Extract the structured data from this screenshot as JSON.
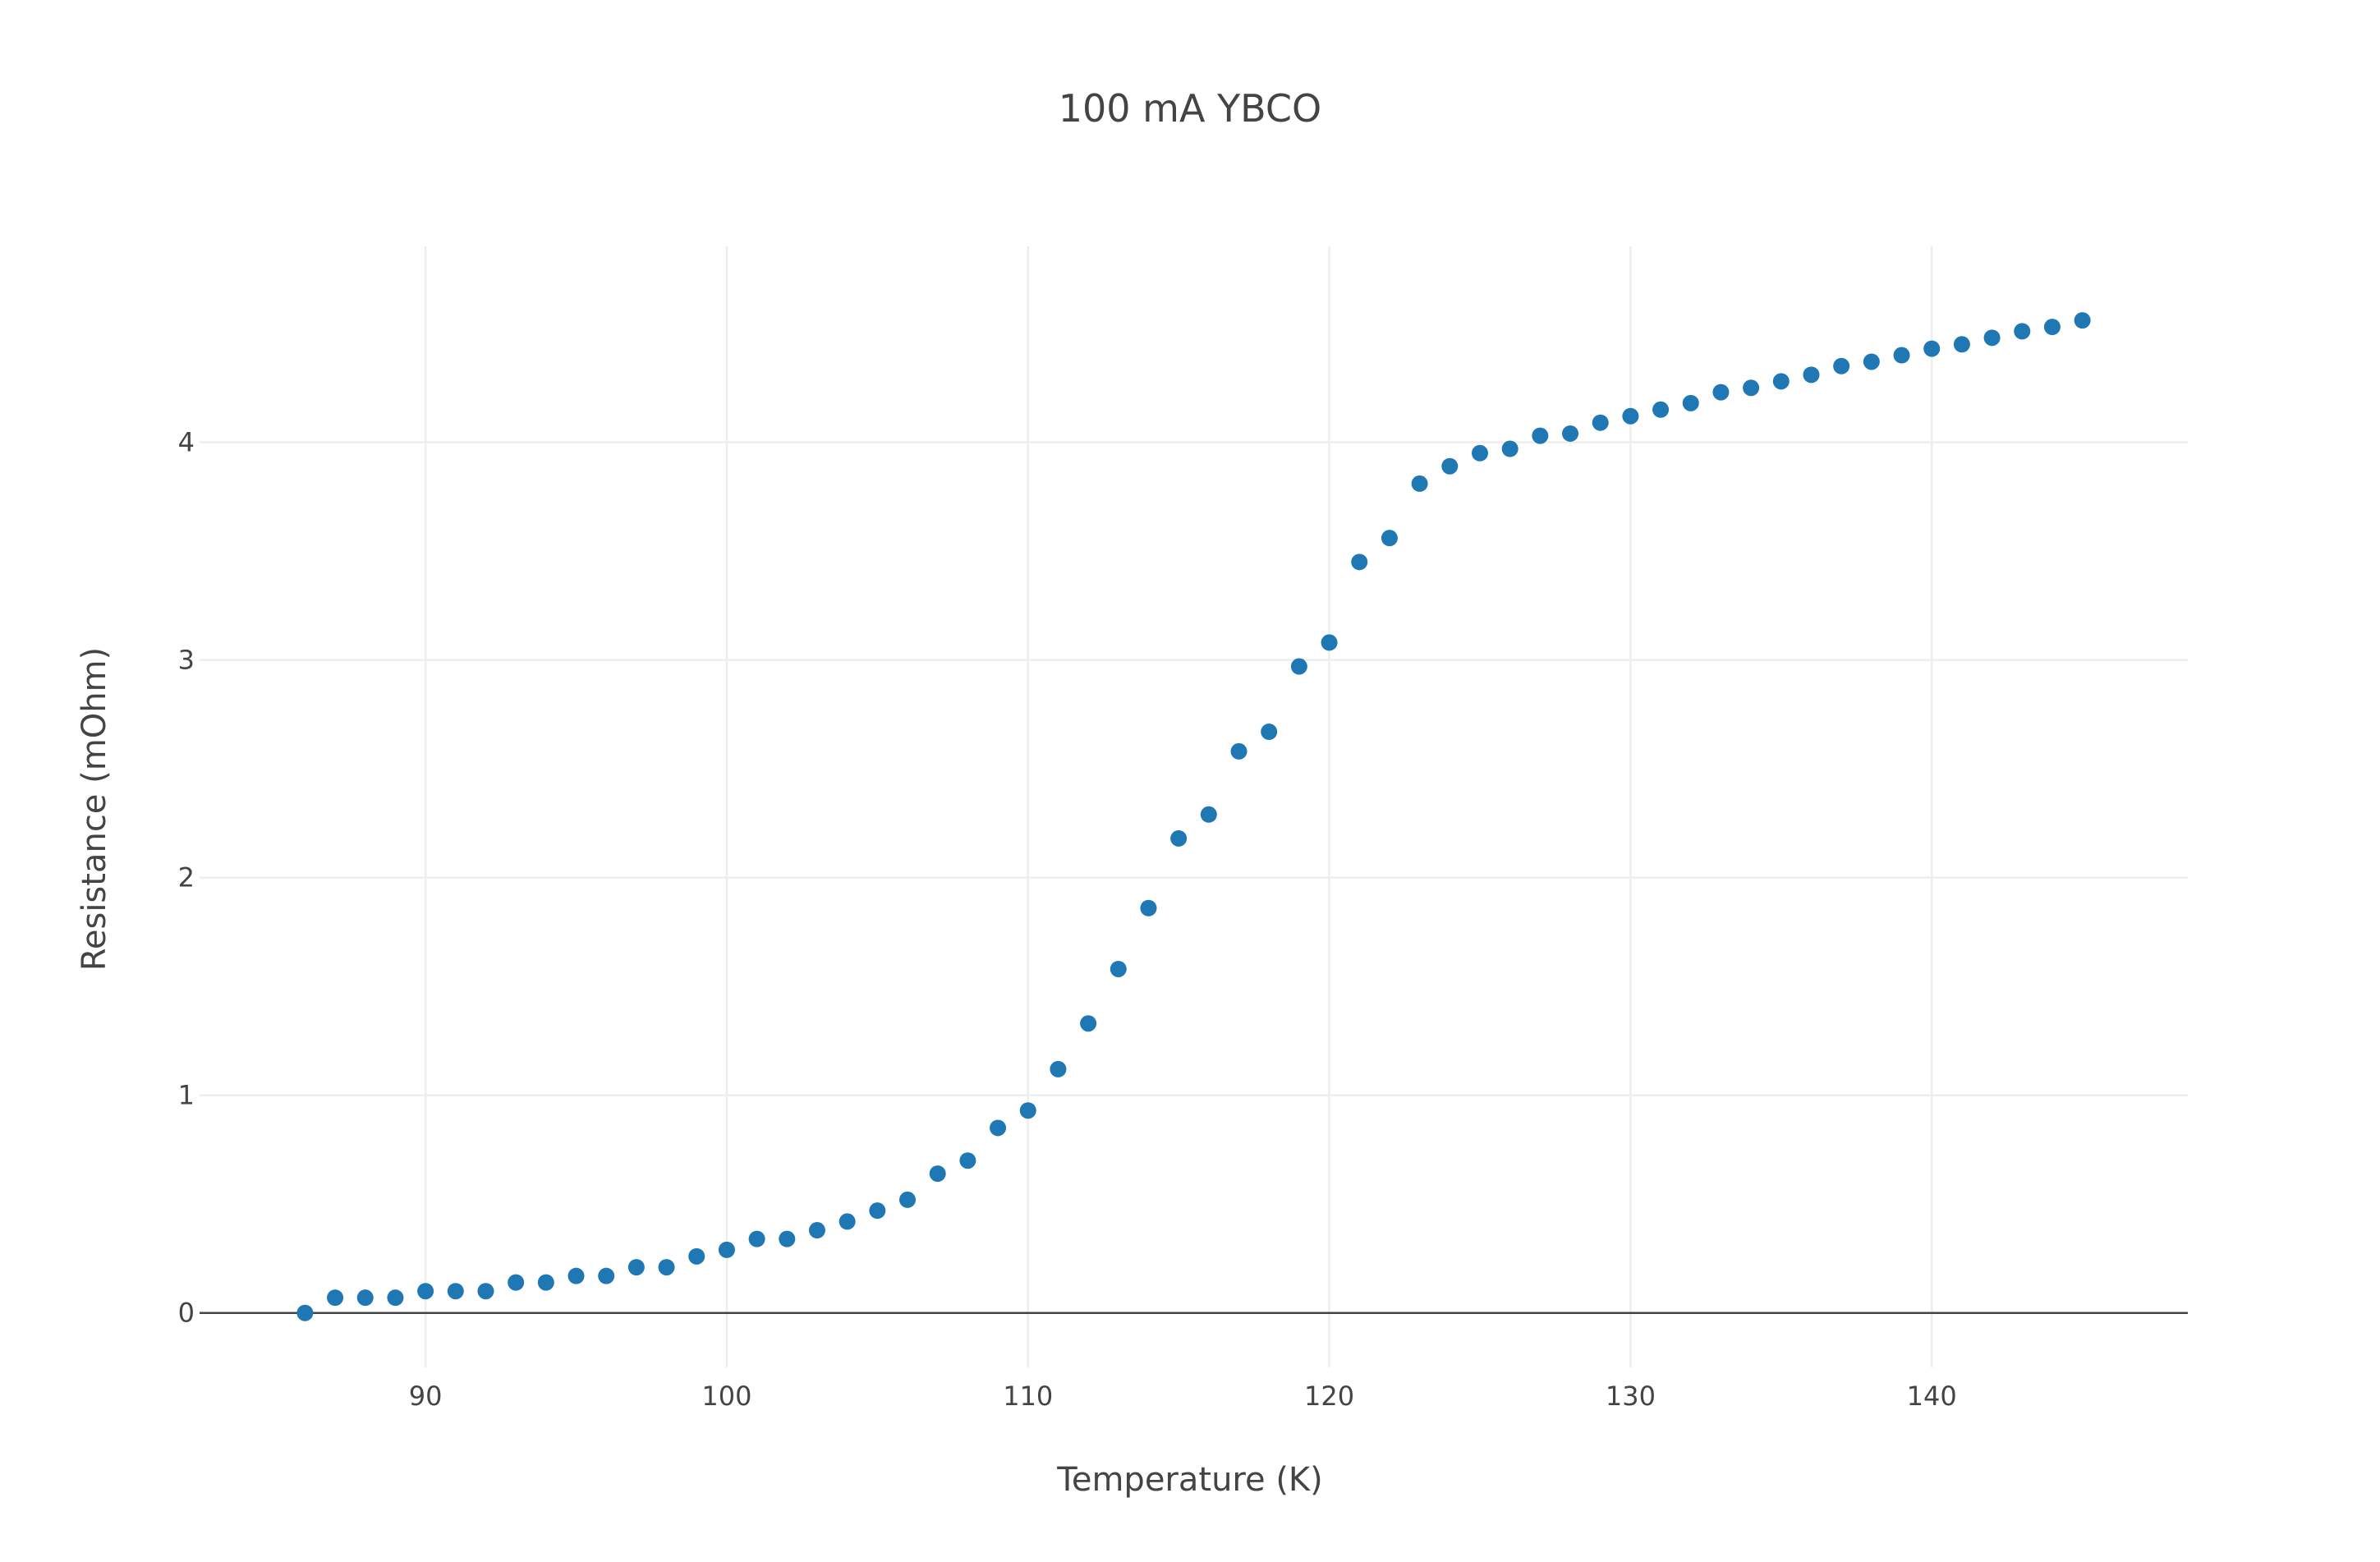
{
  "chart_data": {
    "type": "scatter",
    "title": "100 mA YBCO",
    "xlabel": "Temperature (K)",
    "ylabel": "Resistance (mOhm)",
    "xlim": [
      82.5,
      148.5
    ],
    "ylim": [
      -0.25,
      4.9
    ],
    "xticks": [
      90,
      100,
      110,
      120,
      130,
      140
    ],
    "yticks": [
      0,
      1,
      2,
      3,
      4
    ],
    "grid": true,
    "legend": "none",
    "marker_color": "#1f77b4",
    "series": [
      {
        "x": [
          86,
          87,
          88,
          89,
          90,
          91,
          92,
          93,
          94,
          95,
          96,
          97,
          98,
          99,
          100,
          101,
          102,
          103,
          104,
          105,
          106,
          107,
          108,
          109,
          110,
          111,
          112,
          113,
          114,
          115,
          116,
          117,
          118,
          119,
          120,
          121,
          122,
          123,
          124,
          125,
          126,
          127,
          128,
          129,
          130,
          131,
          132,
          133,
          134,
          135,
          136,
          137,
          138,
          139,
          140,
          141,
          142,
          143,
          144,
          145
        ],
        "y": [
          0.0,
          0.07,
          0.07,
          0.07,
          0.1,
          0.1,
          0.1,
          0.14,
          0.14,
          0.17,
          0.17,
          0.21,
          0.21,
          0.26,
          0.29,
          0.34,
          0.34,
          0.38,
          0.42,
          0.47,
          0.52,
          0.64,
          0.7,
          0.85,
          0.93,
          1.12,
          1.33,
          1.58,
          1.86,
          2.18,
          2.29,
          2.58,
          2.67,
          2.97,
          3.08,
          3.45,
          3.56,
          3.81,
          3.89,
          3.95,
          3.97,
          4.03,
          4.04,
          4.09,
          4.12,
          4.15,
          4.18,
          4.23,
          4.25,
          4.28,
          4.31,
          4.35,
          4.37,
          4.4,
          4.43,
          4.45,
          4.48,
          4.51,
          4.53,
          4.56
        ]
      }
    ]
  }
}
